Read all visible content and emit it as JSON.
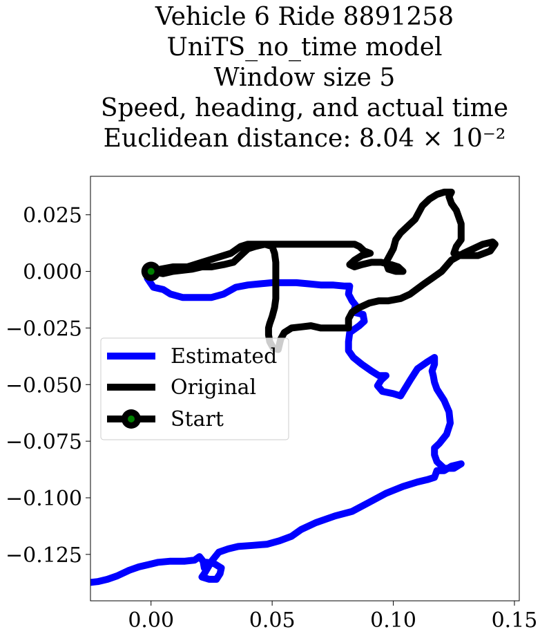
{
  "chart_data": {
    "type": "line",
    "title_lines": [
      "Vehicle 6 Ride 8891258",
      "UniTS_no_time model",
      "Window size 5",
      "Speed, heading, and actual time",
      "Euclidean distance: 8.04 × 10⁻²"
    ],
    "xlabel": "",
    "ylabel": "",
    "xlim": [
      -0.025,
      0.152
    ],
    "ylim": [
      -0.1455,
      0.042
    ],
    "xticks": [
      0.0,
      0.05,
      0.1,
      0.15
    ],
    "xtick_labels": [
      "0.00",
      "0.05",
      "0.10",
      "0.15"
    ],
    "yticks": [
      0.025,
      0.0,
      -0.025,
      -0.05,
      -0.075,
      -0.1,
      -0.125
    ],
    "ytick_labels": [
      "0.025",
      "0.000",
      "−0.025",
      "−0.050",
      "−0.075",
      "−0.100",
      "−0.125"
    ],
    "grid": false,
    "legend_position": "center-left",
    "series": [
      {
        "name": "Estimated",
        "color": "#0000ff",
        "points": [
          [
            0.0,
            0.0
          ],
          [
            -0.0015,
            -0.003
          ],
          [
            0.001,
            -0.007
          ],
          [
            0.005,
            -0.008
          ],
          [
            0.008,
            -0.01
          ],
          [
            0.013,
            -0.0115
          ],
          [
            0.02,
            -0.0115
          ],
          [
            0.025,
            -0.0115
          ],
          [
            0.03,
            -0.01
          ],
          [
            0.035,
            -0.007
          ],
          [
            0.04,
            -0.006
          ],
          [
            0.045,
            -0.0055
          ],
          [
            0.05,
            -0.005
          ],
          [
            0.055,
            -0.005
          ],
          [
            0.06,
            -0.005
          ],
          [
            0.065,
            -0.0055
          ],
          [
            0.07,
            -0.006
          ],
          [
            0.075,
            -0.006
          ],
          [
            0.08,
            -0.0065
          ],
          [
            0.082,
            -0.0065
          ],
          [
            0.0815,
            -0.01
          ],
          [
            0.083,
            -0.013
          ],
          [
            0.0845,
            -0.015
          ],
          [
            0.0835,
            -0.018
          ],
          [
            0.0875,
            -0.019
          ],
          [
            0.088,
            -0.022
          ],
          [
            0.086,
            -0.024
          ],
          [
            0.082,
            -0.027
          ],
          [
            0.0815,
            -0.031
          ],
          [
            0.0815,
            -0.035
          ],
          [
            0.0835,
            -0.038
          ],
          [
            0.087,
            -0.041
          ],
          [
            0.091,
            -0.044
          ],
          [
            0.094,
            -0.046
          ],
          [
            0.097,
            -0.046
          ],
          [
            0.095,
            -0.048
          ],
          [
            0.0935,
            -0.0505
          ],
          [
            0.0955,
            -0.053
          ],
          [
            0.1,
            -0.054
          ],
          [
            0.103,
            -0.055
          ],
          [
            0.107,
            -0.048
          ],
          [
            0.11,
            -0.043
          ],
          [
            0.114,
            -0.04
          ],
          [
            0.117,
            -0.038
          ],
          [
            0.117,
            -0.041
          ],
          [
            0.116,
            -0.044
          ],
          [
            0.1165,
            -0.046
          ],
          [
            0.117,
            -0.049
          ],
          [
            0.118,
            -0.052
          ],
          [
            0.121,
            -0.057
          ],
          [
            0.123,
            -0.062
          ],
          [
            0.1235,
            -0.067
          ],
          [
            0.122,
            -0.072
          ],
          [
            0.119,
            -0.076
          ],
          [
            0.117,
            -0.078
          ],
          [
            0.117,
            -0.081
          ],
          [
            0.118,
            -0.084
          ],
          [
            0.121,
            -0.087
          ],
          [
            0.125,
            -0.087
          ],
          [
            0.128,
            -0.085
          ],
          [
            0.124,
            -0.086
          ],
          [
            0.121,
            -0.088
          ],
          [
            0.118,
            -0.088
          ],
          [
            0.117,
            -0.091
          ],
          [
            0.114,
            -0.092
          ],
          [
            0.11,
            -0.093
          ],
          [
            0.104,
            -0.095
          ],
          [
            0.097,
            -0.098
          ],
          [
            0.09,
            -0.102
          ],
          [
            0.083,
            -0.106
          ],
          [
            0.076,
            -0.108
          ],
          [
            0.068,
            -0.111
          ],
          [
            0.062,
            -0.114
          ],
          [
            0.058,
            -0.117
          ],
          [
            0.053,
            -0.119
          ],
          [
            0.048,
            -0.1205
          ],
          [
            0.042,
            -0.121
          ],
          [
            0.036,
            -0.1215
          ],
          [
            0.032,
            -0.1225
          ],
          [
            0.028,
            -0.124
          ],
          [
            0.025,
            -0.128
          ],
          [
            0.022,
            -0.1335
          ],
          [
            0.021,
            -0.135
          ],
          [
            0.024,
            -0.136
          ],
          [
            0.027,
            -0.136
          ],
          [
            0.0285,
            -0.1335
          ],
          [
            0.029,
            -0.131
          ],
          [
            0.026,
            -0.129
          ],
          [
            0.023,
            -0.1285
          ],
          [
            0.022,
            -0.131
          ],
          [
            0.0215,
            -0.128
          ],
          [
            0.02,
            -0.126
          ],
          [
            0.018,
            -0.1275
          ],
          [
            0.014,
            -0.128
          ],
          [
            0.008,
            -0.128
          ],
          [
            0.003,
            -0.1285
          ],
          [
            -0.001,
            -0.1295
          ],
          [
            -0.005,
            -0.1305
          ],
          [
            -0.009,
            -0.132
          ],
          [
            -0.014,
            -0.1345
          ],
          [
            -0.018,
            -0.136
          ],
          [
            -0.022,
            -0.137
          ],
          [
            -0.026,
            -0.1375
          ],
          [
            -0.03,
            -0.1375
          ]
        ]
      },
      {
        "name": "Original",
        "color": "#000000",
        "points": [
          [
            0.0,
            0.0
          ],
          [
            0.004,
            0.001
          ],
          [
            0.009,
            0.002
          ],
          [
            0.015,
            0.002
          ],
          [
            0.021,
            0.004
          ],
          [
            0.027,
            0.006
          ],
          [
            0.033,
            0.008
          ],
          [
            0.037,
            0.011
          ],
          [
            0.04,
            0.012
          ],
          [
            0.045,
            0.012
          ],
          [
            0.05,
            0.012
          ],
          [
            0.055,
            0.012
          ],
          [
            0.06,
            0.012
          ],
          [
            0.065,
            0.012
          ],
          [
            0.07,
            0.012
          ],
          [
            0.075,
            0.012
          ],
          [
            0.08,
            0.012
          ],
          [
            0.084,
            0.012
          ],
          [
            0.086,
            0.011
          ],
          [
            0.088,
            0.009
          ],
          [
            0.0905,
            0.008
          ],
          [
            0.087,
            0.007
          ],
          [
            0.084,
            0.005
          ],
          [
            0.082,
            0.003
          ],
          [
            0.084,
            0.002
          ],
          [
            0.087,
            0.003
          ],
          [
            0.091,
            0.004
          ],
          [
            0.095,
            0.004
          ],
          [
            0.099,
            0.003
          ],
          [
            0.102,
            0.002
          ],
          [
            0.104,
            0.0
          ],
          [
            0.101,
            0.0
          ],
          [
            0.098,
            0.001
          ],
          [
            0.097,
            0.004
          ],
          [
            0.0985,
            0.007
          ],
          [
            0.1,
            0.01
          ],
          [
            0.101,
            0.014
          ],
          [
            0.103,
            0.017
          ],
          [
            0.106,
            0.02
          ],
          [
            0.109,
            0.023
          ],
          [
            0.11,
            0.025
          ],
          [
            0.112,
            0.029
          ],
          [
            0.115,
            0.032
          ],
          [
            0.118,
            0.034
          ],
          [
            0.121,
            0.035
          ],
          [
            0.124,
            0.035
          ],
          [
            0.123,
            0.033
          ],
          [
            0.124,
            0.03
          ],
          [
            0.126,
            0.027
          ],
          [
            0.128,
            0.021
          ],
          [
            0.128,
            0.018
          ],
          [
            0.128,
            0.014
          ],
          [
            0.126,
            0.011
          ],
          [
            0.125,
            0.008
          ],
          [
            0.128,
            0.007
          ],
          [
            0.131,
            0.007
          ],
          [
            0.135,
            0.007
          ],
          [
            0.14,
            0.009
          ],
          [
            0.142,
            0.012
          ],
          [
            0.141,
            0.013
          ],
          [
            0.137,
            0.012
          ],
          [
            0.133,
            0.01
          ],
          [
            0.129,
            0.008
          ],
          [
            0.124,
            0.005
          ],
          [
            0.12,
            0.0
          ],
          [
            0.116,
            -0.003
          ],
          [
            0.112,
            -0.006
          ],
          [
            0.107,
            -0.01
          ],
          [
            0.103,
            -0.012
          ],
          [
            0.098,
            -0.013
          ],
          [
            0.094,
            -0.013
          ],
          [
            0.09,
            -0.014
          ],
          [
            0.086,
            -0.016
          ],
          [
            0.083,
            -0.018
          ],
          [
            0.0815,
            -0.021
          ],
          [
            0.0815,
            -0.025
          ],
          [
            0.078,
            -0.025
          ],
          [
            0.074,
            -0.025
          ],
          [
            0.07,
            -0.025
          ],
          [
            0.066,
            -0.024
          ],
          [
            0.062,
            -0.0245
          ],
          [
            0.058,
            -0.025
          ],
          [
            0.055,
            -0.027
          ],
          [
            0.0535,
            -0.03
          ],
          [
            0.0525,
            -0.0345
          ],
          [
            0.0505,
            -0.034
          ],
          [
            0.049,
            -0.031
          ],
          [
            0.0485,
            -0.028
          ],
          [
            0.0485,
            -0.025
          ],
          [
            0.049,
            -0.023
          ],
          [
            0.05,
            -0.02
          ],
          [
            0.051,
            -0.016
          ],
          [
            0.0515,
            -0.012
          ],
          [
            0.0515,
            -0.008
          ],
          [
            0.0515,
            -0.004
          ],
          [
            0.0515,
            0.0
          ],
          [
            0.0515,
            0.004
          ],
          [
            0.051,
            0.008
          ],
          [
            0.05,
            0.011
          ],
          [
            0.047,
            0.012
          ],
          [
            0.043,
            0.011
          ],
          [
            0.04,
            0.01
          ],
          [
            0.038,
            0.008
          ],
          [
            0.036,
            0.006
          ],
          [
            0.034,
            0.004
          ],
          [
            0.03,
            0.003
          ],
          [
            0.025,
            0.002
          ],
          [
            0.021,
            0.002
          ],
          [
            0.017,
            0.001
          ],
          [
            0.013,
            0.0005
          ],
          [
            0.009,
            0.0
          ],
          [
            0.005,
            -0.001
          ],
          [
            0.0,
            0.0
          ]
        ]
      }
    ],
    "start_marker": {
      "name": "Start",
      "x": 0.0,
      "y": 0.0,
      "edge_color": "#000000",
      "face_color": "#008000"
    }
  }
}
